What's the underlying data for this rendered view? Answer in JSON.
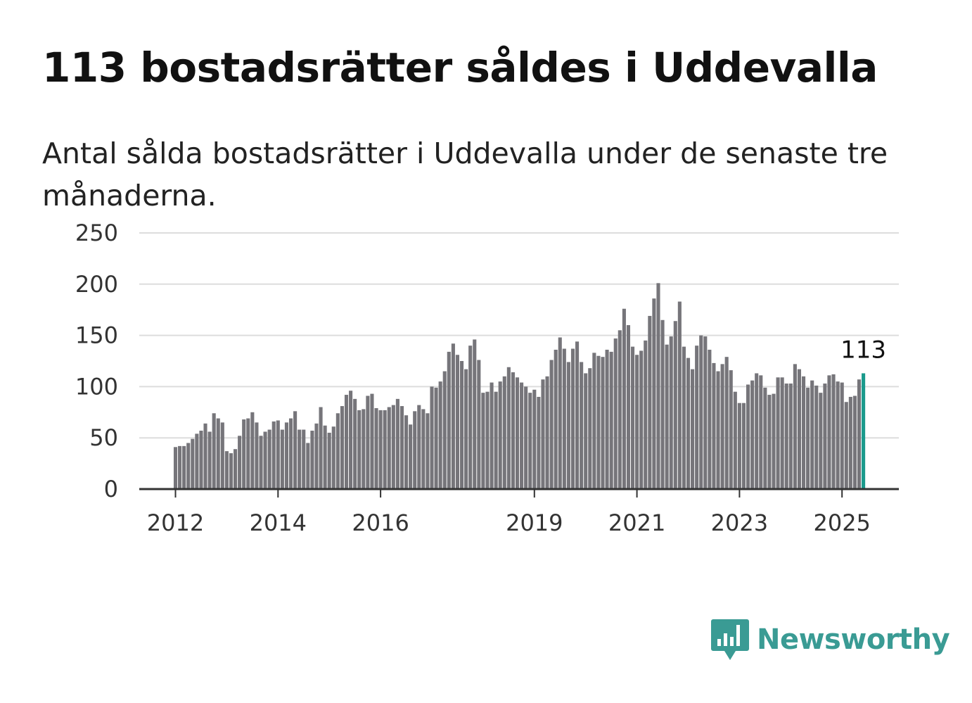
{
  "header": {
    "title": "113 bostadsrätter såldes i Uddevalla",
    "subtitle": "Antal sålda bostadsrätter i Uddevalla under de senaste tre månaderna."
  },
  "branding": {
    "logo_text": "Newsworthy",
    "logo_color": "#3a9b94",
    "logo_icon": "bar-chart-speech-bubble-icon"
  },
  "colors": {
    "bar": "#76757a",
    "highlight": "#1a9a8c",
    "grid": "#dddddd",
    "axis": "#333333"
  },
  "chart_data": {
    "type": "bar",
    "title": "",
    "xlabel": "",
    "ylabel": "",
    "ylim": [
      0,
      250
    ],
    "grid": true,
    "y_ticks": [
      "0",
      "50",
      "100",
      "150",
      "200",
      "250"
    ],
    "x_ticks": [
      "2012",
      "2014",
      "2016",
      "2019",
      "2021",
      "2023",
      "2025"
    ],
    "first_period": "2012-01",
    "last_period": "2025-05",
    "highlight_label": "113",
    "values": [
      41,
      42,
      42,
      45,
      49,
      54,
      57,
      64,
      56,
      74,
      69,
      65,
      37,
      35,
      39,
      52,
      68,
      69,
      75,
      65,
      52,
      56,
      58,
      66,
      67,
      58,
      65,
      69,
      76,
      58,
      58,
      45,
      57,
      64,
      80,
      62,
      55,
      61,
      74,
      81,
      92,
      96,
      88,
      77,
      78,
      91,
      93,
      79,
      77,
      77,
      80,
      82,
      88,
      81,
      72,
      63,
      76,
      82,
      78,
      74,
      100,
      99,
      105,
      115,
      134,
      142,
      131,
      125,
      117,
      140,
      146,
      126,
      94,
      95,
      104,
      95,
      105,
      110,
      119,
      114,
      109,
      104,
      100,
      94,
      97,
      90,
      107,
      110,
      126,
      136,
      148,
      137,
      124,
      137,
      144,
      124,
      113,
      118,
      133,
      130,
      129,
      136,
      134,
      147,
      155,
      176,
      160,
      139,
      131,
      135,
      145,
      169,
      186,
      201,
      165,
      141,
      149,
      164,
      183,
      139,
      128,
      117,
      140,
      150,
      149,
      136,
      123,
      115,
      122,
      129,
      116,
      95,
      84,
      84,
      102,
      106,
      113,
      111,
      99,
      92,
      93,
      109,
      109,
      103,
      103,
      122,
      117,
      110,
      99,
      106,
      101,
      94,
      103,
      111,
      112,
      105,
      104,
      85,
      90,
      91,
      107,
      113
    ]
  }
}
